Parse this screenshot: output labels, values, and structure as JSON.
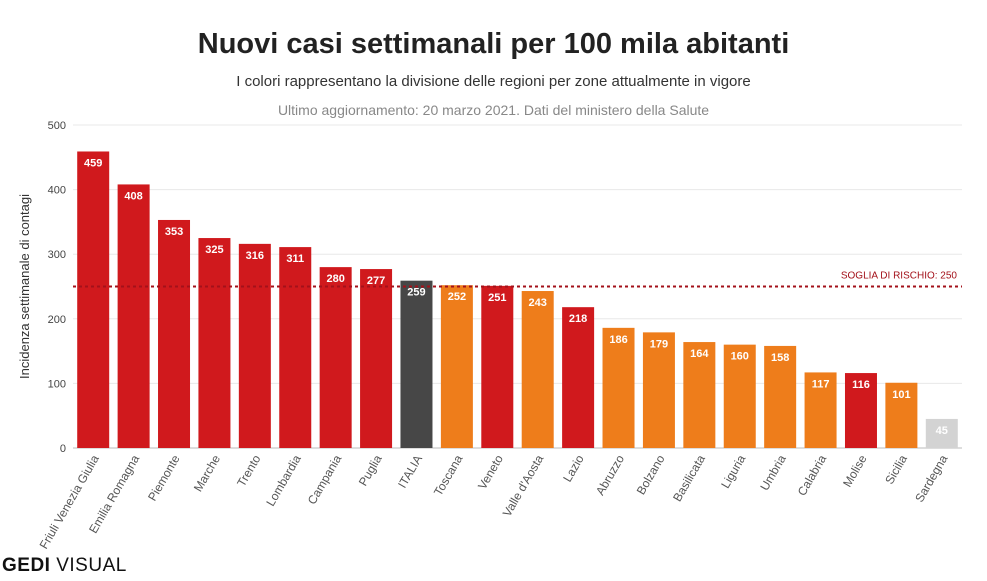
{
  "chart_data": {
    "type": "bar",
    "title": "Nuovi casi settimanali per 100 mila abitanti",
    "subtitle": "I colori rappresentano la divisione delle regioni per zone attualmente in vigore",
    "note": "Ultimo aggiornamento: 20 marzo 2021. Dati del ministero della Salute",
    "ylabel": "Incidenza settimanale di contagi",
    "xlabel": "",
    "ylim": [
      0,
      500
    ],
    "yticks": [
      0,
      100,
      200,
      300,
      400,
      500
    ],
    "grid": true,
    "categories": [
      "Friuli Venezia Giulia",
      "Emilia Romagna",
      "Piemonte",
      "Marche",
      "Trento",
      "Lombardia",
      "Campania",
      "Puglia",
      "ITALIA",
      "Toscana",
      "Veneto",
      "Valle d'Aosta",
      "Lazio",
      "Abruzzo",
      "Bolzano",
      "Basilicata",
      "Liguria",
      "Umbria",
      "Calabria",
      "Molise",
      "Sicilia",
      "Sardegna"
    ],
    "values": [
      459,
      408,
      353,
      325,
      316,
      311,
      280,
      277,
      259,
      252,
      251,
      243,
      218,
      186,
      179,
      164,
      160,
      158,
      117,
      116,
      101,
      45
    ],
    "zones": [
      "red",
      "red",
      "red",
      "red",
      "red",
      "red",
      "red",
      "red",
      "italy",
      "orange",
      "red",
      "orange",
      "red",
      "orange",
      "orange",
      "orange",
      "orange",
      "orange",
      "orange",
      "red",
      "orange",
      "white"
    ],
    "colors": {
      "red": "#d0191d",
      "orange": "#ee7d1b",
      "italy": "#474747",
      "white": "#d3d3d3",
      "threshold": "#a3111a"
    },
    "threshold": {
      "value": 250,
      "label": "SOGLIA DI RISCHIO: 250"
    }
  },
  "brand": {
    "first": "GEDI",
    "second": "VISUAL"
  }
}
